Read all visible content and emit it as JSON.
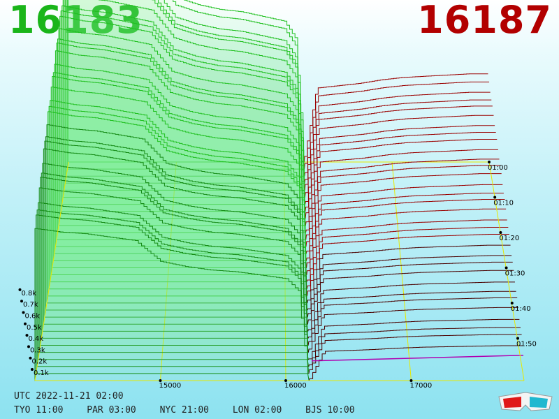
{
  "header": {
    "bid_price": "16183",
    "ask_price": "16187"
  },
  "footer": {
    "utc_datetime": "UTC 2022-11-21 02:00",
    "city_times": [
      "TYO 11:00",
      "PAR 03:00",
      "NYC 21:00",
      "LON 02:00",
      "BJS 10:00"
    ]
  },
  "icons": {
    "toggle_3d": "3d-glasses-icon"
  },
  "chart_data": {
    "type": "area",
    "subtype": "3d-order-book-depth",
    "x_tick_labels": [
      "15000",
      "16000",
      "17000"
    ],
    "x_tick_values": [
      15000,
      16000,
      17000
    ],
    "depth_tick_labels": [
      "0.1k",
      "0.2k",
      "0.3k",
      "0.4k",
      "0.5k",
      "0.6k",
      "0.7k",
      "0.8k"
    ],
    "depth_tick_values": [
      100,
      200,
      300,
      400,
      500,
      600,
      700,
      800
    ],
    "time_tick_labels": [
      "01:00",
      "01:10",
      "01:20",
      "01:30",
      "01:40",
      "01:50"
    ],
    "xlim": [
      14000,
      17900
    ],
    "ylim": [
      0,
      900
    ],
    "grid": false,
    "series": [
      {
        "name": "",
        "side": "bid",
        "color": "#20c020",
        "x": [
          14000,
          14200,
          14400,
          14600,
          14800,
          15000,
          15200,
          15400,
          15600,
          15800,
          16000,
          16100,
          16180
        ],
        "depth": [
          880,
          860,
          850,
          830,
          810,
          690,
          660,
          640,
          630,
          610,
          590,
          520,
          10
        ]
      },
      {
        "name": "",
        "side": "ask",
        "color": "#9a0000",
        "x": [
          16190,
          16300,
          16500,
          16700,
          16900,
          17100,
          17300,
          17500,
          17700
        ],
        "depth": [
          20,
          310,
          320,
          330,
          345,
          355,
          360,
          365,
          370
        ]
      }
    ]
  },
  "colors": {
    "bid": "#1ab51a",
    "ask": "#b20000",
    "frame": "#e8e800",
    "spread_line": "#b000b0"
  }
}
